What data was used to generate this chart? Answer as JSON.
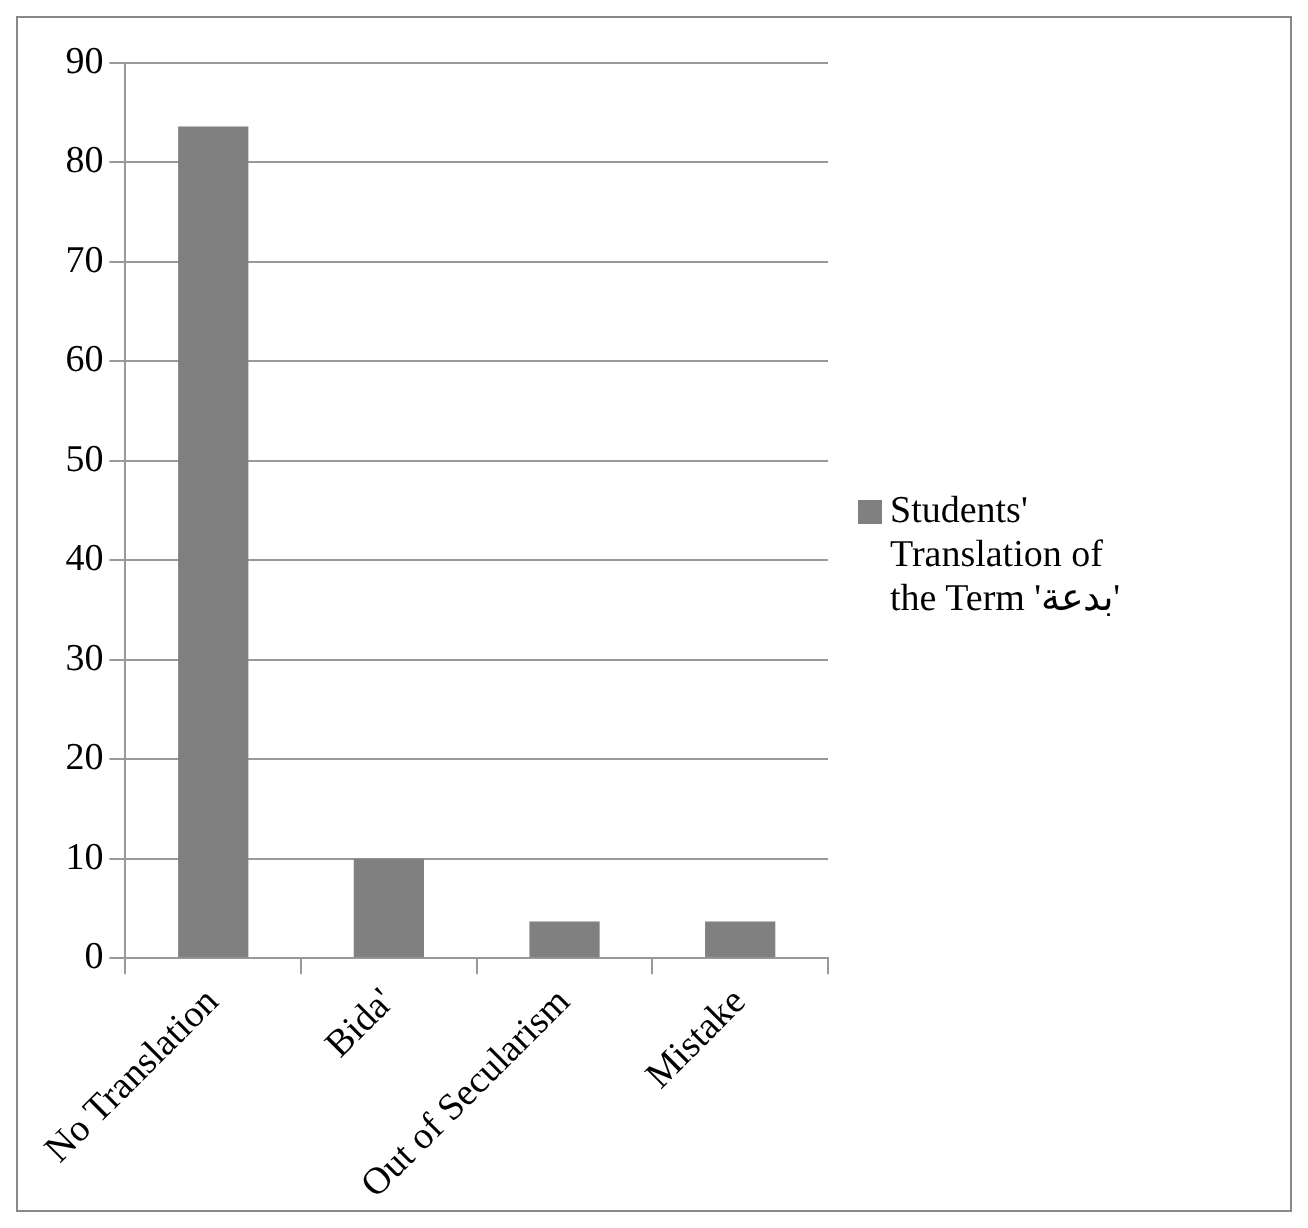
{
  "chart_data": {
    "type": "bar",
    "categories": [
      "No Translation",
      "Bida'",
      "Out of Secularism",
      "Mistake"
    ],
    "series": [
      {
        "name": "Students' Translation of the Term 'بدعة'",
        "color": "#808080",
        "values": [
          83.6,
          10,
          3.7,
          3.7
        ]
      }
    ],
    "ylim": [
      0,
      90
    ],
    "yticks": [
      0,
      10,
      20,
      30,
      40,
      50,
      60,
      70,
      80,
      90
    ],
    "grid": "y",
    "legend": "right"
  }
}
